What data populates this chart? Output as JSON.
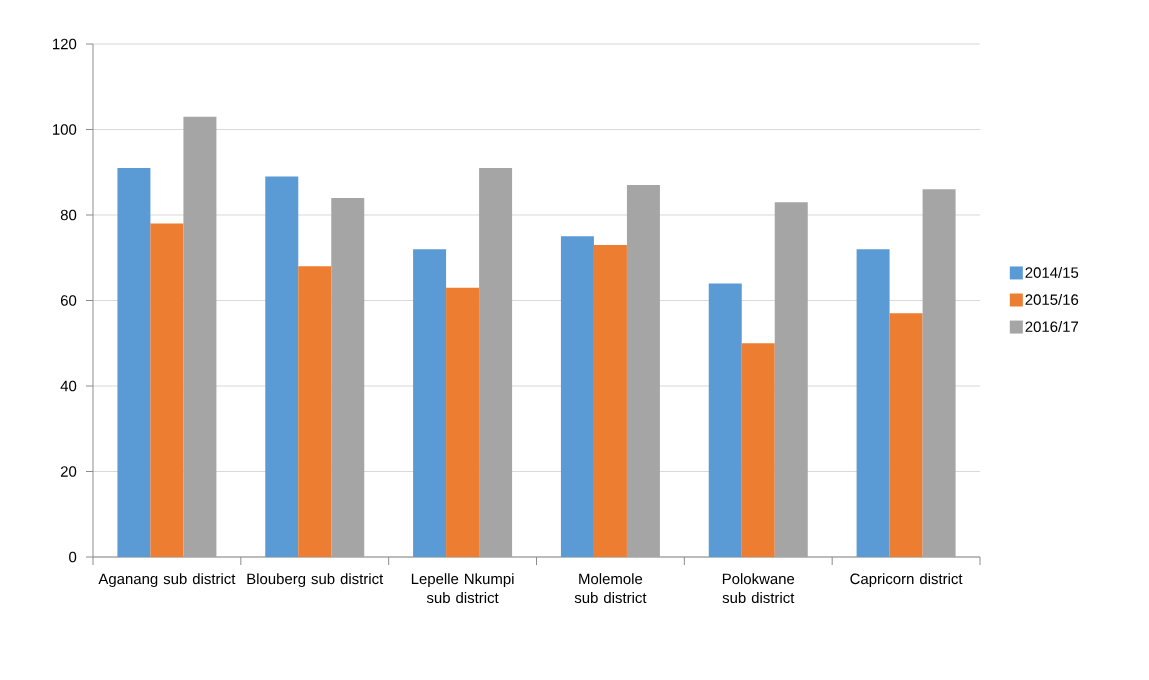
{
  "chart_data": {
    "type": "bar",
    "categories": [
      "Aganang sub district",
      "Blouberg sub district",
      "Lepelle Nkumpi sub district",
      "Molemole sub district",
      "Polokwane sub district",
      "Capricorn district"
    ],
    "series": [
      {
        "name": "2014/15",
        "color": "#5b9bd5",
        "values": [
          91,
          89,
          72,
          75,
          64,
          72
        ]
      },
      {
        "name": "2015/16",
        "color": "#ed7d31",
        "values": [
          78,
          68,
          63,
          73,
          50,
          57
        ]
      },
      {
        "name": "2016/17",
        "color": "#a5a5a5",
        "values": [
          103,
          84,
          91,
          87,
          83,
          86
        ]
      }
    ],
    "ylim": [
      0,
      120
    ],
    "yticks": [
      0,
      20,
      40,
      60,
      80,
      100,
      120
    ],
    "grid": "y",
    "legend": "right"
  }
}
